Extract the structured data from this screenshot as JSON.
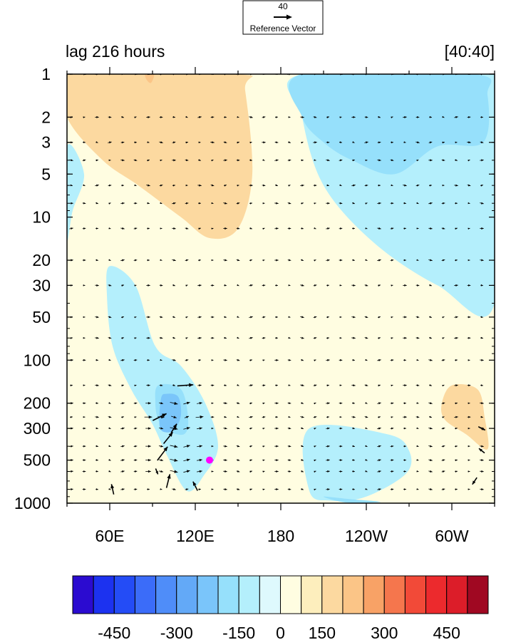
{
  "chart_data": {
    "type": "heatmap",
    "title_left": "lag 216 hours",
    "title_right": "[40:40]",
    "reference_vector": {
      "magnitude": "40",
      "label": "Reference Vector"
    },
    "x_ticks": [
      {
        "lon": 60,
        "label": "60E"
      },
      {
        "lon": 120,
        "label": "120E"
      },
      {
        "lon": 180,
        "label": "180"
      },
      {
        "lon": 240,
        "label": "120W"
      },
      {
        "lon": 300,
        "label": "60W"
      }
    ],
    "xlim": [
      30,
      330
    ],
    "y_scale": "log",
    "y_ticks": [
      {
        "p": 1,
        "label": "1"
      },
      {
        "p": 2,
        "label": "2"
      },
      {
        "p": 3,
        "label": "3"
      },
      {
        "p": 5,
        "label": "5"
      },
      {
        "p": 10,
        "label": "10"
      },
      {
        "p": 20,
        "label": "20"
      },
      {
        "p": 30,
        "label": "30"
      },
      {
        "p": 50,
        "label": "50"
      },
      {
        "p": 100,
        "label": "100"
      },
      {
        "p": 200,
        "label": "200"
      },
      {
        "p": 300,
        "label": "300"
      },
      {
        "p": 500,
        "label": "500"
      },
      {
        "p": 1000,
        "label": "1000"
      }
    ],
    "ylim": [
      1,
      1000
    ],
    "colorbar": {
      "colors": [
        "#2b0bd0",
        "#1c32f0",
        "#244cf6",
        "#3b6cf9",
        "#4f8df9",
        "#63a9f7",
        "#7ac5fa",
        "#96e0fb",
        "#b4effc",
        "#def9fd",
        "#fffde1",
        "#fdeebd",
        "#fcd9a0",
        "#fbc587",
        "#f8a266",
        "#f5764d",
        "#f24a38",
        "#ec2a2d",
        "#dc1d29",
        "#a00822"
      ],
      "tick_labels": [
        "-450",
        "-300",
        "-150",
        "0",
        "150",
        "300",
        "450"
      ],
      "tick_boundary_index": [
        2,
        5,
        8,
        10,
        12,
        15,
        18
      ]
    },
    "contour_regions": [
      {
        "color": "#fcd9a0",
        "value": "150",
        "poly": [
          [
            30,
            1
          ],
          [
            150,
            1
          ],
          [
            155,
            1.3
          ],
          [
            160,
            5
          ],
          [
            150,
            12
          ],
          [
            130,
            14
          ],
          [
            110,
            10
          ],
          [
            80,
            6
          ],
          [
            55,
            4
          ],
          [
            30,
            2
          ]
        ]
      },
      {
        "color": "#fcd9a0",
        "value": "150",
        "poly": [
          [
            300,
            150
          ],
          [
            318,
            160
          ],
          [
            323,
            250
          ],
          [
            325,
            420
          ],
          [
            310,
            330
          ],
          [
            295,
            260
          ],
          [
            293,
            200
          ]
        ]
      },
      {
        "color": "#fbc587",
        "value": "225",
        "poly": [
          [
            85,
            1
          ],
          [
            91,
            1
          ],
          [
            89,
            1.15
          ],
          [
            86,
            1.1
          ]
        ]
      },
      {
        "color": "#b4effc",
        "value": "-90",
        "poly": [
          [
            30,
            3.2
          ],
          [
            42,
            5
          ],
          [
            34,
            9
          ],
          [
            30,
            14
          ]
        ]
      },
      {
        "color": "#b4effc",
        "value": "-90",
        "poly": [
          [
            60,
            22
          ],
          [
            78,
            30
          ],
          [
            92,
            80
          ],
          [
            110,
            110
          ],
          [
            127,
            200
          ],
          [
            136,
            400
          ],
          [
            126,
            640
          ],
          [
            114,
            820
          ],
          [
            100,
            460
          ],
          [
            90,
            280
          ],
          [
            75,
            160
          ],
          [
            62,
            80
          ],
          [
            58,
            35
          ]
        ]
      },
      {
        "color": "#b4effc",
        "value": "-90",
        "poly": [
          [
            195,
            1
          ],
          [
            330,
            1
          ],
          [
            330,
            40
          ],
          [
            290,
            30
          ],
          [
            245,
            15
          ],
          [
            210,
            6
          ],
          [
            195,
            2
          ]
        ]
      },
      {
        "color": "#b4effc",
        "value": "-90",
        "poly": [
          [
            200,
            300
          ],
          [
            255,
            330
          ],
          [
            270,
            430
          ],
          [
            268,
            620
          ],
          [
            240,
            900
          ],
          [
            215,
            960
          ],
          [
            200,
            820
          ]
        ]
      },
      {
        "color": "#96e0fb",
        "value": "-120",
        "poly": [
          [
            195,
            1
          ],
          [
            315,
            1
          ],
          [
            325,
            1.4
          ],
          [
            322,
            3
          ],
          [
            290,
            3.2
          ],
          [
            260,
            5
          ],
          [
            230,
            4
          ],
          [
            210,
            3
          ],
          [
            195,
            2
          ]
        ]
      },
      {
        "color": "#96e0fb",
        "value": "-120",
        "poly": [
          [
            94,
            150
          ],
          [
            110,
            160
          ],
          [
            115,
            260
          ],
          [
            112,
            330
          ],
          [
            100,
            310
          ],
          [
            94,
            260
          ],
          [
            92,
            200
          ]
        ]
      },
      {
        "color": "#96e0fb",
        "value": "-120",
        "poly": [
          [
            210,
            900
          ],
          [
            230,
            940
          ],
          [
            250,
            980
          ],
          [
            226,
            990
          ]
        ]
      },
      {
        "color": "#7ac5fa",
        "value": "-180",
        "poly": [
          [
            96,
            185
          ],
          [
            100,
            172
          ],
          [
            108,
            180
          ],
          [
            110,
            240
          ],
          [
            106,
            300
          ],
          [
            100,
            320
          ],
          [
            95,
            290
          ]
        ]
      }
    ],
    "vectors": {
      "lon": [
        33,
        42,
        51,
        60,
        69,
        78,
        87,
        96,
        105,
        114,
        123,
        132,
        141,
        150,
        159,
        168,
        177,
        186,
        195,
        204,
        213,
        222,
        231,
        240,
        249,
        258,
        267,
        276,
        285,
        294,
        303,
        312,
        321
      ],
      "p": [
        1,
        2,
        3,
        4,
        6,
        8,
        12,
        20,
        30,
        50,
        70,
        100,
        150,
        200,
        250,
        300,
        400,
        500,
        600,
        800
      ],
      "u_units": "m/s",
      "wind_barbs": [
        {
          "lon": 101,
          "p": 350,
          "u": 8,
          "v": 10
        },
        {
          "lon": 93,
          "p": 600,
          "u": 2,
          "v": -5
        },
        {
          "lon": 97,
          "p": 450,
          "u": 9,
          "v": 12
        },
        {
          "lon": 105,
          "p": 300,
          "u": 5,
          "v": 8
        },
        {
          "lon": 95,
          "p": 250,
          "u": 12,
          "v": 6
        },
        {
          "lon": 113,
          "p": 150,
          "u": 14,
          "v": 1
        },
        {
          "lon": 101,
          "p": 700,
          "u": 3,
          "v": 12
        },
        {
          "lon": 62,
          "p": 800,
          "u": -2,
          "v": 9
        },
        {
          "lon": 120,
          "p": 760,
          "u": -4,
          "v": 8
        },
        {
          "lon": 321,
          "p": 300,
          "u": 6,
          "v": -3
        },
        {
          "lon": 321,
          "p": 430,
          "u": -5,
          "v": 4
        },
        {
          "lon": 316,
          "p": 700,
          "u": -4,
          "v": -6
        }
      ]
    },
    "marker": {
      "lon": 130,
      "p": 500,
      "color": "#ff00ff"
    }
  }
}
